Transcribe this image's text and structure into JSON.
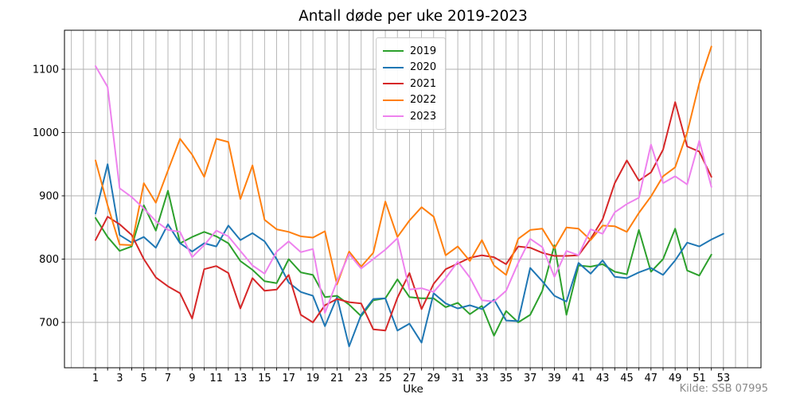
{
  "title": "Antall døde per uke 2019-2023",
  "source": "Kilde: SSB 07995",
  "chart_data": {
    "type": "line",
    "title": "Antall døde per uke 2019-2023",
    "xlabel": "Uke",
    "ylabel": "",
    "grid": true,
    "legend_position": "upper center",
    "x_tick_labels": [
      1,
      3,
      5,
      7,
      9,
      11,
      13,
      15,
      17,
      19,
      21,
      23,
      25,
      27,
      29,
      31,
      33,
      35,
      37,
      39,
      41,
      43,
      45,
      47,
      49,
      51,
      53
    ],
    "y_tick_labels": [
      700,
      800,
      900,
      1000,
      1100
    ],
    "xlim": [
      -1.5,
      56.5
    ],
    "ylim": [
      628,
      1162
    ],
    "series": [
      {
        "name": "2019",
        "color": "#2ca02c",
        "start_week": 1,
        "values": [
          865,
          835,
          813,
          820,
          885,
          845,
          908,
          825,
          835,
          843,
          836,
          825,
          797,
          783,
          765,
          762,
          800,
          779,
          775,
          740,
          742,
          728,
          710,
          735,
          738,
          768,
          740,
          738,
          738,
          724,
          731,
          713,
          726,
          679,
          718,
          700,
          712,
          750,
          822,
          712,
          790,
          788,
          792,
          780,
          776,
          846,
          780,
          800,
          848,
          782,
          774,
          807
        ]
      },
      {
        "name": "2020",
        "color": "#1f77b4",
        "start_week": 1,
        "values": [
          872,
          950,
          838,
          826,
          835,
          818,
          855,
          825,
          812,
          825,
          820,
          853,
          830,
          841,
          828,
          800,
          763,
          748,
          742,
          694,
          740,
          662,
          712,
          737,
          738,
          687,
          698,
          668,
          746,
          730,
          722,
          727,
          721,
          736,
          703,
          702,
          786,
          765,
          742,
          733,
          794,
          777,
          798,
          772,
          770,
          779,
          786,
          775,
          798,
          826,
          820,
          831,
          840
        ]
      },
      {
        "name": "2021",
        "color": "#d62728",
        "start_week": 1,
        "values": [
          830,
          867,
          855,
          838,
          800,
          771,
          757,
          746,
          706,
          784,
          789,
          778,
          722,
          770,
          750,
          752,
          775,
          712,
          700,
          727,
          737,
          732,
          730,
          689,
          687,
          739,
          778,
          721,
          761,
          784,
          793,
          802,
          806,
          803,
          792,
          820,
          818,
          810,
          805,
          805,
          806,
          832,
          863,
          920,
          956,
          924,
          937,
          973,
          1048,
          978,
          970,
          930
        ]
      },
      {
        "name": "2022",
        "color": "#ff7f0e",
        "start_week": 1,
        "values": [
          956,
          885,
          823,
          822,
          920,
          889,
          940,
          990,
          965,
          930,
          990,
          985,
          895,
          948,
          862,
          847,
          843,
          836,
          834,
          844,
          760,
          812,
          788,
          810,
          891,
          835,
          861,
          882,
          867,
          806,
          820,
          797,
          830,
          790,
          775,
          832,
          846,
          848,
          817,
          850,
          848,
          830,
          853,
          852,
          843,
          873,
          899,
          931,
          945,
          1000,
          1078,
          1136
        ]
      },
      {
        "name": "2023",
        "color": "#ee82ee",
        "start_week": 1,
        "values": [
          1105,
          1072,
          912,
          898,
          880,
          860,
          846,
          843,
          803,
          822,
          845,
          836,
          813,
          790,
          777,
          812,
          828,
          811,
          816,
          715,
          765,
          808,
          785,
          800,
          815,
          833,
          752,
          754,
          748,
          770,
          796,
          771,
          735,
          733,
          750,
          794,
          832,
          819,
          772,
          813,
          806,
          847,
          840,
          874,
          887,
          897,
          981,
          920,
          931,
          918,
          987,
          914
        ]
      }
    ]
  }
}
